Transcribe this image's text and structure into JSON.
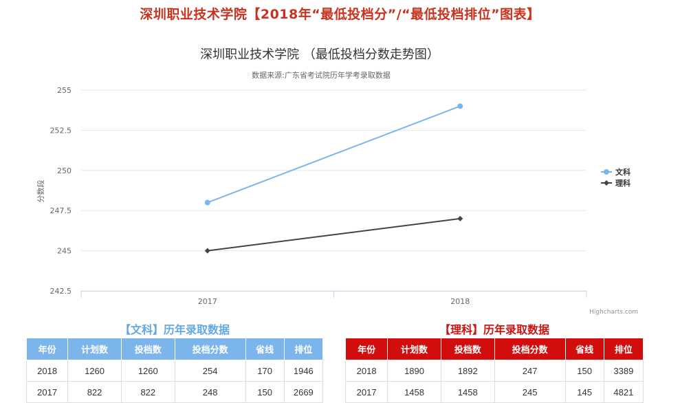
{
  "page": {
    "title": "深圳职业技术学院【2018年“最低投档分”/“最低投档排位”图表】"
  },
  "chart_data": {
    "type": "line",
    "title": "深圳职业技术学院 （最低投档分数走势图）",
    "subtitle": "数据来源:广东省考试院历年学考录取数据",
    "ylabel": "分数段",
    "xlabel": "",
    "categories": [
      "2017",
      "2018"
    ],
    "ylim": [
      242.5,
      255
    ],
    "yticks": [
      "242.5",
      "245",
      "247.5",
      "250",
      "252.5",
      "255"
    ],
    "series": [
      {
        "name": "文科",
        "values": [
          248,
          254
        ],
        "color": "#7cb5ec",
        "marker": "circle"
      },
      {
        "name": "理科",
        "values": [
          245,
          247
        ],
        "color": "#434348",
        "marker": "diamond"
      }
    ],
    "legend": "right",
    "grid": true,
    "credits": "Highcharts.com"
  },
  "tables": {
    "wen": {
      "title": "【文科】历年录取数据",
      "headers": [
        "年份",
        "计划数",
        "投档数",
        "投档分数",
        "省线",
        "排位"
      ],
      "rows": [
        [
          "2018",
          "1260",
          "1260",
          "254",
          "170",
          "1946"
        ],
        [
          "2017",
          "822",
          "822",
          "248",
          "150",
          "2669"
        ]
      ]
    },
    "li": {
      "title": "【理科】历年录取数据",
      "headers": [
        "年份",
        "计划数",
        "投档数",
        "投档分数",
        "省线",
        "排位"
      ],
      "rows": [
        [
          "2018",
          "1890",
          "1892",
          "247",
          "150",
          "3389"
        ],
        [
          "2017",
          "1458",
          "1458",
          "245",
          "145",
          "4821"
        ]
      ]
    }
  }
}
